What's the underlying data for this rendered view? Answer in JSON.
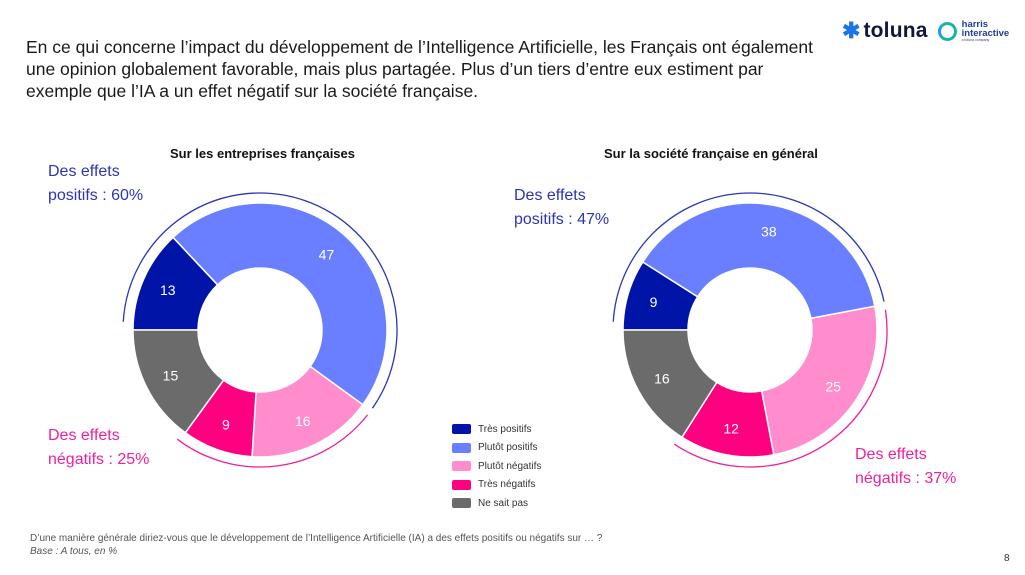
{
  "headline": "En ce qui concerne l’impact du développement de l’Intelligence Artificielle, les Français ont également une opinion globalement favorable, mais plus partagée. Plus d’un tiers d’entre eux estiment par exemple que l’IA a un effet négatif sur la société française.",
  "logo": {
    "toluna": "toluna",
    "harris_line1": "harris",
    "harris_line2": "interactive",
    "harris_tag": "a toluna company"
  },
  "callouts": {
    "left_pos_line1": "Des effets",
    "left_pos_line2": "positifs : 60%",
    "left_neg_line1": "Des effets",
    "left_neg_line2": "négatifs : 25%",
    "right_pos_line1": "Des effets",
    "right_pos_line2": "positifs : 47%",
    "right_neg_line1": "Des effets",
    "right_neg_line2": "négatifs : 37%"
  },
  "colors": {
    "tres_positifs": "#0014a8",
    "plutot_positifs": "#6a7fff",
    "plutot_negatifs": "#ff8ccc",
    "tres_negatifs": "#ff0080",
    "ne_sait_pas": "#6b6b6b",
    "positive_arc": "#2c35b5",
    "negative_arc": "#f0209a"
  },
  "legend": [
    "Très positifs",
    "Plutôt positifs",
    "Plutôt négatifs",
    "Très négatifs",
    "Ne sait pas"
  ],
  "footnote": {
    "question": "D’une manière générale diriez-vous que le développement de l’Intelligence Artificielle (IA) a des effets positifs ou négatifs sur … ?",
    "base": "Base : A tous, en %"
  },
  "page_number": "8",
  "chart_data": [
    {
      "type": "pie",
      "variant": "donut",
      "title": "Sur les entreprises françaises",
      "categories": [
        "Très positifs",
        "Plutôt positifs",
        "Plutôt négatifs",
        "Très négatifs",
        "Ne sait pas"
      ],
      "values": [
        13,
        47,
        16,
        9,
        15
      ],
      "unit": "%",
      "totals": {
        "positifs": 60,
        "negatifs": 25
      }
    },
    {
      "type": "pie",
      "variant": "donut",
      "title": "Sur la société française en général",
      "categories": [
        "Très positifs",
        "Plutôt positifs",
        "Plutôt négatifs",
        "Très négatifs",
        "Ne sait pas"
      ],
      "values": [
        9,
        38,
        25,
        12,
        16
      ],
      "unit": "%",
      "totals": {
        "positifs": 47,
        "negatifs": 37
      }
    }
  ]
}
